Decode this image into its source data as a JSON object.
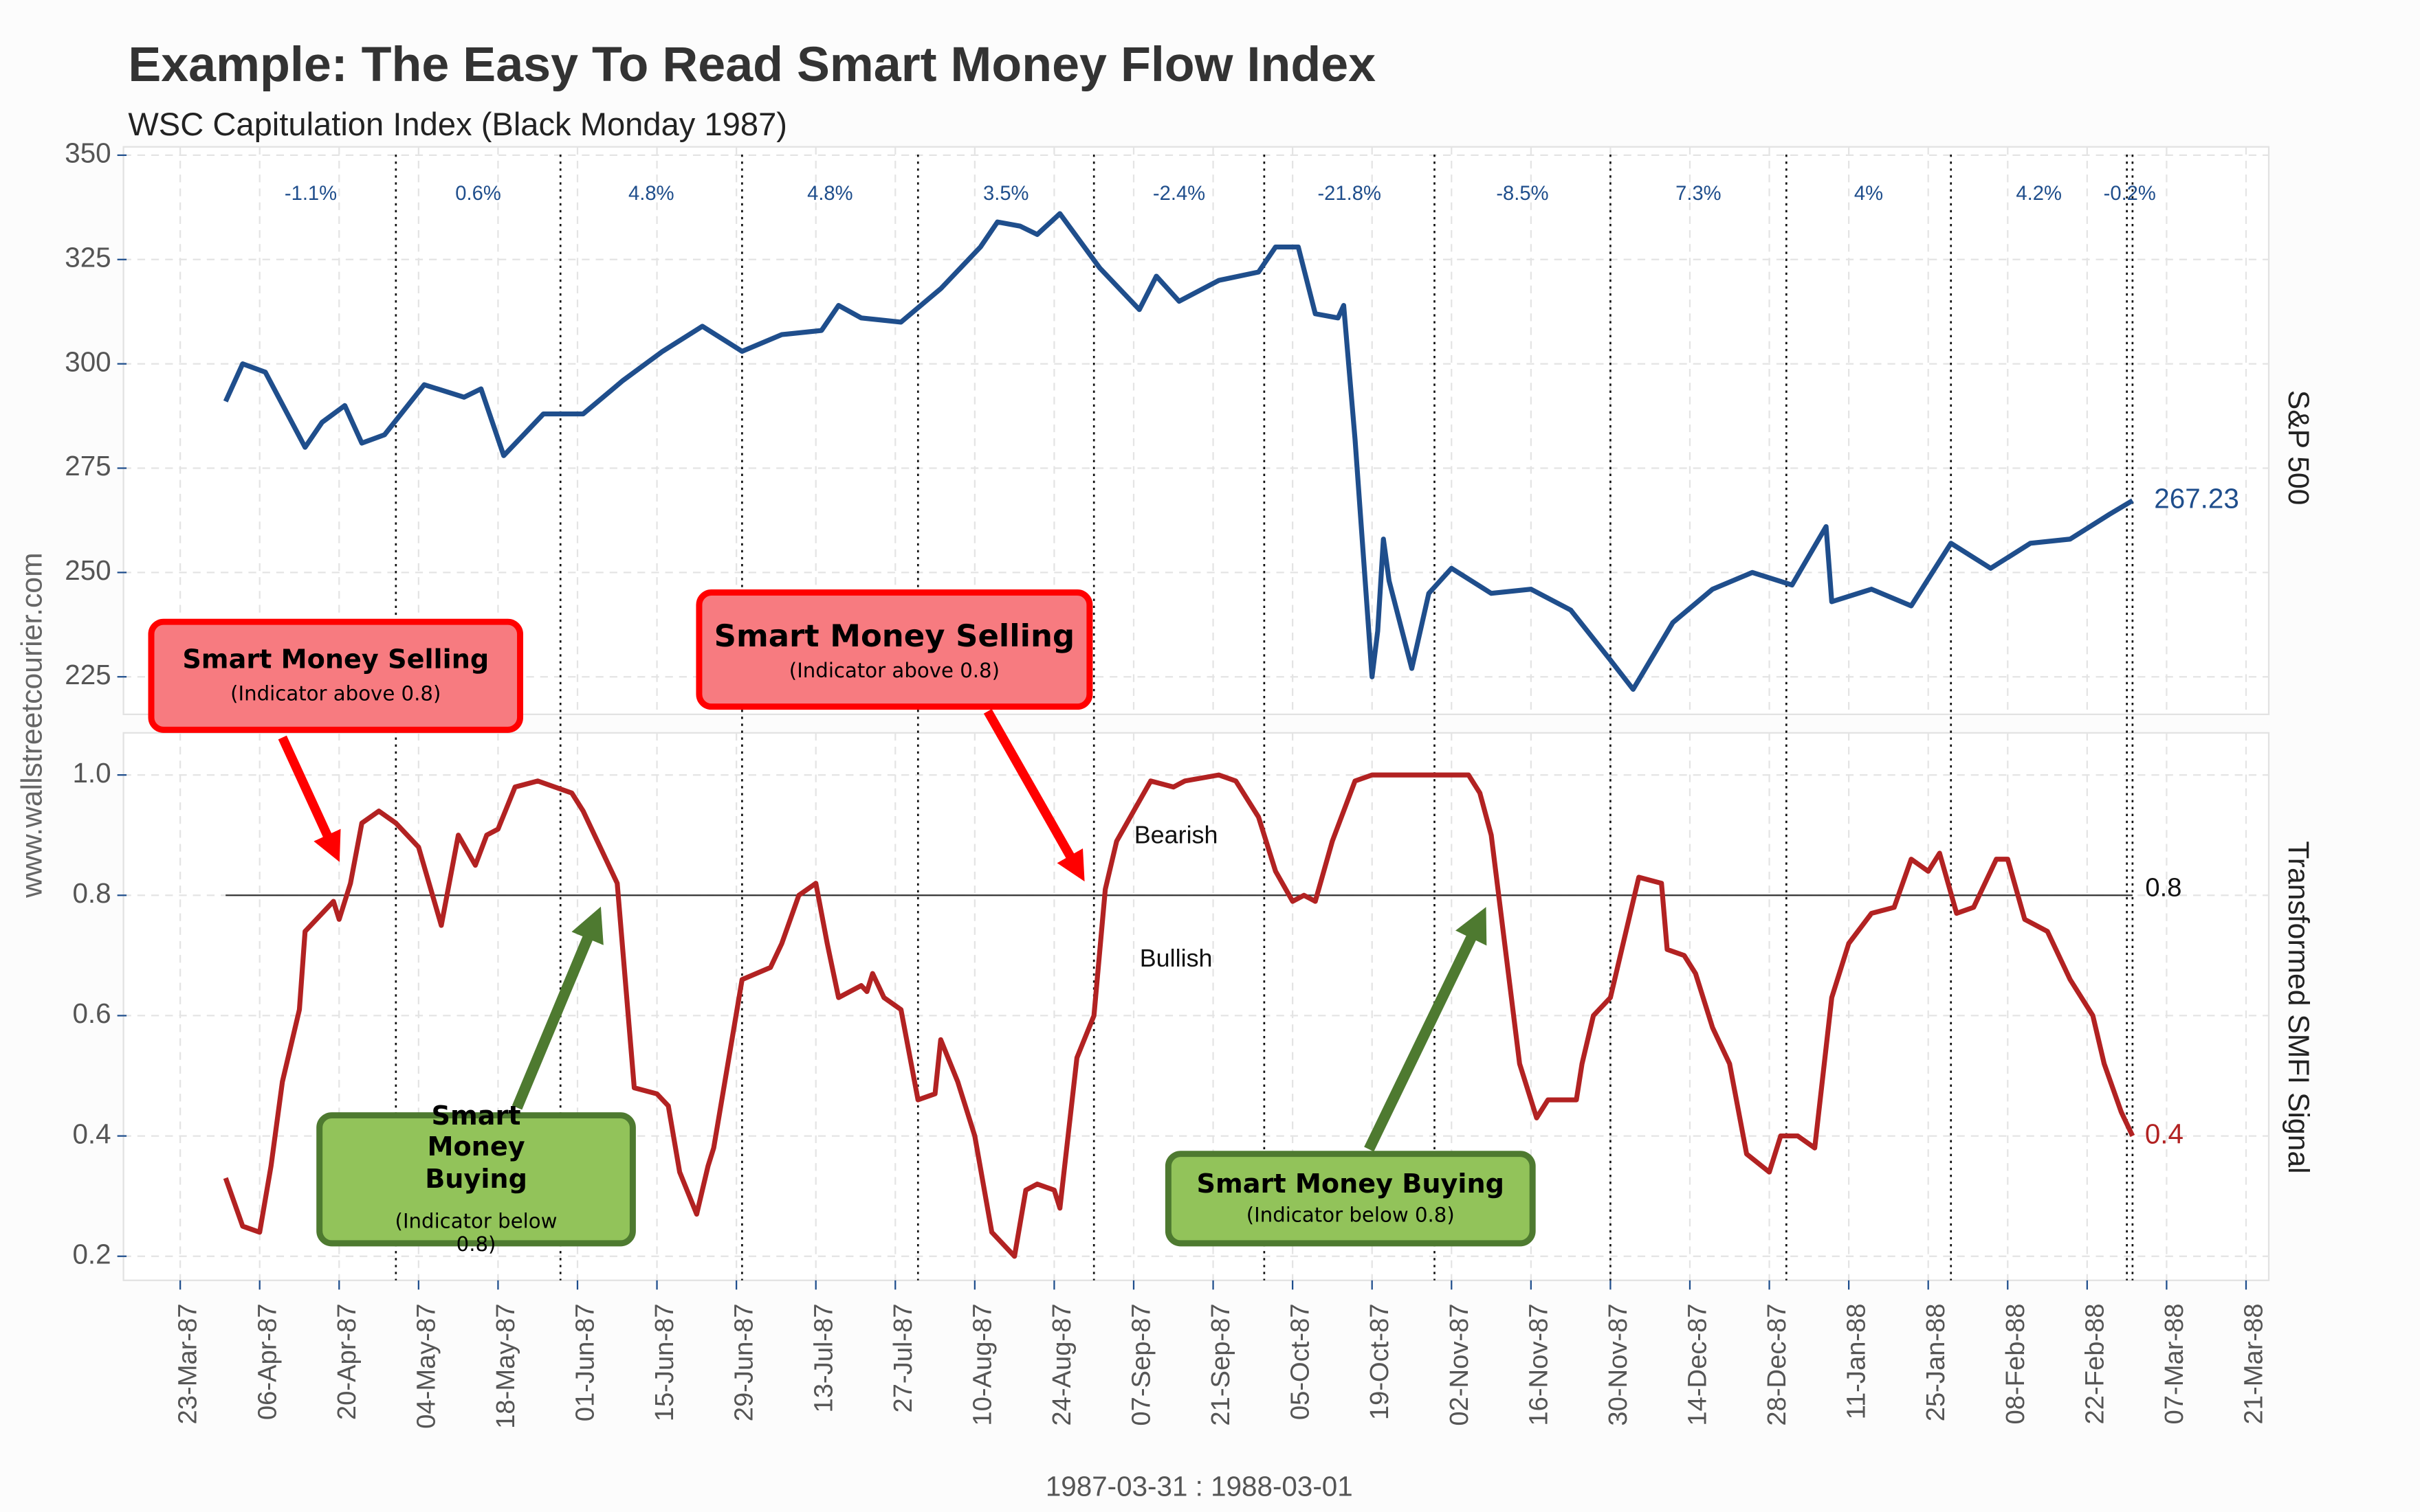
{
  "chart_data": {
    "type": "line",
    "title": "Example: The Easy To Read Smart Money Flow Index",
    "subtitle": "WSC Capitulation Index (Black Monday 1987)",
    "x_label": "1987-03-31 : 1988-03-01",
    "watermark": "www.wallstreetcourier.com",
    "xlim": [
      "1987-03-13",
      "1988-03-25"
    ],
    "xticks": [
      {
        "value": "1987-03-23",
        "label": "23-Mar-87"
      },
      {
        "value": "1987-04-06",
        "label": "06-Apr-87"
      },
      {
        "value": "1987-04-20",
        "label": "20-Apr-87"
      },
      {
        "value": "1987-05-04",
        "label": "04-May-87"
      },
      {
        "value": "1987-05-18",
        "label": "18-May-87"
      },
      {
        "value": "1987-06-01",
        "label": "01-Jun-87"
      },
      {
        "value": "1987-06-15",
        "label": "15-Jun-87"
      },
      {
        "value": "1987-06-29",
        "label": "29-Jun-87"
      },
      {
        "value": "1987-07-13",
        "label": "13-Jul-87"
      },
      {
        "value": "1987-07-27",
        "label": "27-Jul-87"
      },
      {
        "value": "1987-08-10",
        "label": "10-Aug-87"
      },
      {
        "value": "1987-08-24",
        "label": "24-Aug-87"
      },
      {
        "value": "1987-09-07",
        "label": "07-Sep-87"
      },
      {
        "value": "1987-09-21",
        "label": "21-Sep-87"
      },
      {
        "value": "1987-10-05",
        "label": "05-Oct-87"
      },
      {
        "value": "1987-10-19",
        "label": "19-Oct-87"
      },
      {
        "value": "1987-11-02",
        "label": "02-Nov-87"
      },
      {
        "value": "1987-11-16",
        "label": "16-Nov-87"
      },
      {
        "value": "1987-11-30",
        "label": "30-Nov-87"
      },
      {
        "value": "1987-12-14",
        "label": "14-Dec-87"
      },
      {
        "value": "1987-12-28",
        "label": "28-Dec-87"
      },
      {
        "value": "1988-01-11",
        "label": "11-Jan-88"
      },
      {
        "value": "1988-01-25",
        "label": "25-Jan-88"
      },
      {
        "value": "1988-02-08",
        "label": "08-Feb-88"
      },
      {
        "value": "1988-02-22",
        "label": "22-Feb-88"
      },
      {
        "value": "1988-03-07",
        "label": "07-Mar-88"
      },
      {
        "value": "1988-03-21",
        "label": "21-Mar-88"
      }
    ],
    "grid": true,
    "month_ends": [
      "1987-03-31",
      "1987-04-30",
      "1987-05-29",
      "1987-06-30",
      "1987-07-31",
      "1987-08-31",
      "1987-09-30",
      "1987-10-30",
      "1987-11-30",
      "1987-12-31",
      "1988-01-29",
      "1988-02-29",
      "1988-03-01"
    ],
    "monthly_returns": [
      {
        "value": -1.1,
        "label": "-1.1%"
      },
      {
        "value": 0.6,
        "label": "0.6%"
      },
      {
        "value": 4.8,
        "label": "4.8%"
      },
      {
        "value": 4.8,
        "label": "4.8%"
      },
      {
        "value": 3.5,
        "label": "3.5%"
      },
      {
        "value": -2.4,
        "label": "-2.4%"
      },
      {
        "value": -21.8,
        "label": "-21.8%"
      },
      {
        "value": -8.5,
        "label": "-8.5%"
      },
      {
        "value": 7.3,
        "label": "7.3%"
      },
      {
        "value": 4,
        "label": "4%"
      },
      {
        "value": 4.2,
        "label": "4.2%"
      },
      {
        "value": -0.2,
        "label": "-0.2%"
      }
    ],
    "panels": [
      {
        "name": "S&P 500",
        "color": "#1f4e8c",
        "ylim": [
          216,
          352
        ],
        "yticks": [
          225,
          250,
          275,
          300,
          325,
          350
        ],
        "x": [
          "1987-03-31",
          "1987-04-03",
          "1987-04-07",
          "1987-04-14",
          "1987-04-17",
          "1987-04-21",
          "1987-04-24",
          "1987-04-28",
          "1987-05-05",
          "1987-05-12",
          "1987-05-15",
          "1987-05-19",
          "1987-05-26",
          "1987-06-02",
          "1987-06-09",
          "1987-06-16",
          "1987-06-23",
          "1987-06-30",
          "1987-07-07",
          "1987-07-14",
          "1987-07-17",
          "1987-07-21",
          "1987-07-28",
          "1987-08-04",
          "1987-08-11",
          "1987-08-14",
          "1987-08-18",
          "1987-08-21",
          "1987-08-25",
          "1987-09-01",
          "1987-09-08",
          "1987-09-11",
          "1987-09-15",
          "1987-09-22",
          "1987-09-29",
          "1987-10-02",
          "1987-10-06",
          "1987-10-09",
          "1987-10-13",
          "1987-10-14",
          "1987-10-16",
          "1987-10-19",
          "1987-10-20",
          "1987-10-21",
          "1987-10-22",
          "1987-10-26",
          "1987-10-29",
          "1987-11-02",
          "1987-11-09",
          "1987-11-16",
          "1987-11-23",
          "1987-11-30",
          "1987-12-04",
          "1987-12-11",
          "1987-12-18",
          "1987-12-25",
          "1988-01-01",
          "1988-01-07",
          "1988-01-08",
          "1988-01-15",
          "1988-01-22",
          "1988-01-29",
          "1988-02-05",
          "1988-02-12",
          "1988-02-19",
          "1988-02-26",
          "1988-03-01"
        ],
        "values": [
          291,
          300,
          298,
          280,
          286,
          290,
          281,
          283,
          295,
          292,
          294,
          278,
          288,
          288,
          296,
          303,
          309,
          303,
          307,
          308,
          314,
          311,
          310,
          318,
          328,
          334,
          333,
          331,
          336,
          323,
          313,
          321,
          315,
          320,
          322,
          328,
          328,
          312,
          311,
          314,
          282,
          225,
          236,
          258,
          248,
          227,
          245,
          251,
          245,
          246,
          241,
          229,
          222,
          238,
          246,
          250,
          247,
          261,
          243,
          246,
          242,
          257,
          251,
          257,
          258,
          264,
          267.23
        ]
      },
      {
        "name": "Transformed SMFI Signal",
        "color": "#b22222",
        "ylim": [
          0.16,
          1.07
        ],
        "yticks": [
          0.2,
          0.4,
          0.6,
          0.8,
          {
            "value": 1,
            "label": "1.0"
          }
        ],
        "threshold": 0.8,
        "zone_labels": [
          "Bearish",
          "Bullish"
        ],
        "x": [
          "1987-03-31",
          "1987-04-03",
          "1987-04-06",
          "1987-04-08",
          "1987-04-10",
          "1987-04-13",
          "1987-04-14",
          "1987-04-19",
          "1987-04-20",
          "1987-04-22",
          "1987-04-24",
          "1987-04-27",
          "1987-04-30",
          "1987-05-04",
          "1987-05-08",
          "1987-05-11",
          "1987-05-14",
          "1987-05-16",
          "1987-05-18",
          "1987-05-21",
          "1987-05-25",
          "1987-05-31",
          "1987-06-02",
          "1987-06-05",
          "1987-06-08",
          "1987-06-11",
          "1987-06-15",
          "1987-06-17",
          "1987-06-19",
          "1987-06-22",
          "1987-06-24",
          "1987-06-25",
          "1987-06-30",
          "1987-07-05",
          "1987-07-07",
          "1987-07-10",
          "1987-07-13",
          "1987-07-15",
          "1987-07-17",
          "1987-07-21",
          "1987-07-22",
          "1987-07-23",
          "1987-07-25",
          "1987-07-28",
          "1987-07-31",
          "1987-08-03",
          "1987-08-04",
          "1987-08-07",
          "1987-08-10",
          "1987-08-13",
          "1987-08-17",
          "1987-08-19",
          "1987-08-21",
          "1987-08-24",
          "1987-08-25",
          "1987-08-28",
          "1987-08-31",
          "1987-09-02",
          "1987-09-04",
          "1987-09-07",
          "1987-09-10",
          "1987-09-14",
          "1987-09-16",
          "1987-09-22",
          "1987-09-25",
          "1987-09-29",
          "1987-10-02",
          "1987-10-05",
          "1987-10-07",
          "1987-10-09",
          "1987-10-12",
          "1987-10-16",
          "1987-10-19",
          "1987-11-05",
          "1987-11-07",
          "1987-11-09",
          "1987-11-14",
          "1987-11-17",
          "1987-11-19",
          "1987-11-24",
          "1987-11-25",
          "1987-11-27",
          "1987-11-30",
          "1987-12-02",
          "1987-12-05",
          "1987-12-09",
          "1987-12-10",
          "1987-12-13",
          "1987-12-15",
          "1987-12-18",
          "1987-12-21",
          "1987-12-24",
          "1987-12-28",
          "1987-12-30",
          "1988-01-02",
          "1988-01-05",
          "1988-01-08",
          "1988-01-11",
          "1988-01-15",
          "1988-01-19",
          "1988-01-22",
          "1988-01-25",
          "1988-01-27",
          "1988-01-30",
          "1988-02-02",
          "1988-02-06",
          "1988-02-08",
          "1988-02-11",
          "1988-02-15",
          "1988-02-19",
          "1988-02-23",
          "1988-02-25",
          "1988-02-28",
          "1988-03-01"
        ],
        "values": [
          0.33,
          0.25,
          0.24,
          0.35,
          0.49,
          0.61,
          0.74,
          0.79,
          0.76,
          0.82,
          0.92,
          0.94,
          0.92,
          0.88,
          0.75,
          0.9,
          0.85,
          0.9,
          0.91,
          0.98,
          0.99,
          0.97,
          0.94,
          0.88,
          0.82,
          0.48,
          0.47,
          0.45,
          0.34,
          0.27,
          0.35,
          0.38,
          0.66,
          0.68,
          0.72,
          0.8,
          0.82,
          0.72,
          0.63,
          0.65,
          0.64,
          0.67,
          0.63,
          0.61,
          0.46,
          0.47,
          0.56,
          0.49,
          0.4,
          0.24,
          0.2,
          0.31,
          0.32,
          0.31,
          0.28,
          0.53,
          0.6,
          0.81,
          0.89,
          0.94,
          0.99,
          0.98,
          0.99,
          1,
          0.99,
          0.93,
          0.84,
          0.79,
          0.8,
          0.79,
          0.89,
          0.99,
          1,
          1,
          0.97,
          0.9,
          0.52,
          0.43,
          0.46,
          0.46,
          0.52,
          0.6,
          0.63,
          0.71,
          0.83,
          0.82,
          0.71,
          0.7,
          0.67,
          0.58,
          0.52,
          0.37,
          0.34,
          0.4,
          0.4,
          0.38,
          0.63,
          0.72,
          0.77,
          0.78,
          0.86,
          0.84,
          0.87,
          0.77,
          0.78,
          0.86,
          0.86,
          0.76,
          0.74,
          0.66,
          0.6,
          0.52,
          0.44,
          0.4
        ]
      }
    ],
    "callouts": [
      {
        "title": "Smart Money Selling",
        "subtitle": "(Indicator above 0.8)"
      },
      {
        "title": "Smart Money Selling",
        "subtitle": "(Indicator above 0.8)"
      },
      {
        "title": "Smart Money Buying",
        "subtitle": "(Indicator below 0.8)"
      },
      {
        "title": "Smart Money Buying",
        "subtitle": "(Indicator below 0.8)"
      }
    ]
  }
}
